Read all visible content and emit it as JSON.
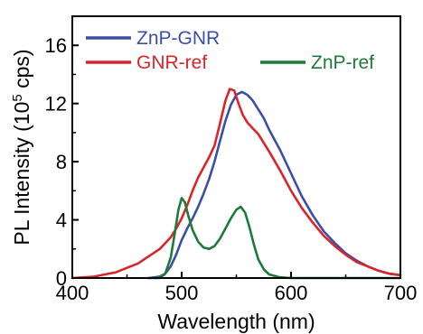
{
  "chart_data": {
    "type": "line",
    "title": "",
    "xlabel": "Wavelength (nm)",
    "ylabel_main": "PL Intensity (10",
    "ylabel_sup": "5",
    "ylabel_tail": " cps)",
    "xlim": [
      400,
      700
    ],
    "ylim": [
      0,
      18
    ],
    "xticks": [
      400,
      500,
      600,
      700
    ],
    "yticks": [
      0,
      4,
      8,
      12,
      16
    ],
    "xtick_labels": [
      "400",
      "500",
      "600",
      "700"
    ],
    "ytick_labels": [
      "0",
      "4",
      "8",
      "12",
      "16"
    ],
    "grid": false,
    "legend_position": "top",
    "series": [
      {
        "name": "ZnP-GNR",
        "color": "#3a4fa8",
        "x": [
          470,
          480,
          485,
          490,
          495,
          500,
          505,
          510,
          515,
          520,
          525,
          530,
          535,
          540,
          545,
          550,
          555,
          560,
          565,
          570,
          575,
          580,
          590,
          600,
          610,
          620,
          630,
          640,
          650,
          660,
          670,
          680,
          690,
          700
        ],
        "y": [
          0.0,
          0.1,
          0.3,
          0.8,
          1.6,
          2.6,
          3.4,
          4.1,
          4.9,
          5.8,
          6.8,
          8.0,
          9.4,
          10.8,
          11.9,
          12.6,
          12.8,
          12.6,
          12.2,
          11.6,
          11.0,
          10.2,
          8.8,
          7.2,
          5.6,
          4.3,
          3.2,
          2.4,
          1.7,
          1.2,
          0.8,
          0.5,
          0.3,
          0.2
        ]
      },
      {
        "name": "GNR-ref",
        "color": "#d9252a",
        "x": [
          400,
          420,
          440,
          450,
          460,
          470,
          480,
          490,
          495,
          500,
          505,
          510,
          515,
          520,
          525,
          530,
          535,
          540,
          544,
          548,
          552,
          556,
          560,
          565,
          570,
          580,
          590,
          600,
          610,
          620,
          630,
          640,
          650,
          660,
          670,
          680,
          690,
          700
        ],
        "y": [
          0.0,
          0.1,
          0.4,
          0.7,
          1.0,
          1.5,
          2.0,
          2.8,
          3.4,
          4.1,
          5.0,
          6.0,
          6.9,
          7.6,
          8.3,
          9.1,
          10.6,
          12.2,
          13.0,
          12.9,
          12.0,
          11.2,
          10.7,
          10.3,
          9.9,
          8.7,
          7.4,
          6.0,
          4.8,
          3.8,
          2.9,
          2.2,
          1.6,
          1.1,
          0.8,
          0.5,
          0.3,
          0.2
        ]
      },
      {
        "name": "ZnP-ref",
        "color": "#1d7a3a",
        "x": [
          470,
          480,
          485,
          490,
          494,
          497,
          500,
          503,
          506,
          510,
          515,
          520,
          525,
          530,
          535,
          540,
          545,
          550,
          554,
          558,
          562,
          566,
          570,
          575,
          580,
          590,
          600,
          620,
          650,
          700
        ],
        "y": [
          0.0,
          0.0,
          0.3,
          1.4,
          3.2,
          4.7,
          5.5,
          5.2,
          4.3,
          3.3,
          2.5,
          2.1,
          2.0,
          2.2,
          2.7,
          3.4,
          4.1,
          4.7,
          4.9,
          4.5,
          3.5,
          2.3,
          1.3,
          0.6,
          0.25,
          0.05,
          0.0,
          0.0,
          0.0,
          0.0
        ]
      }
    ]
  }
}
